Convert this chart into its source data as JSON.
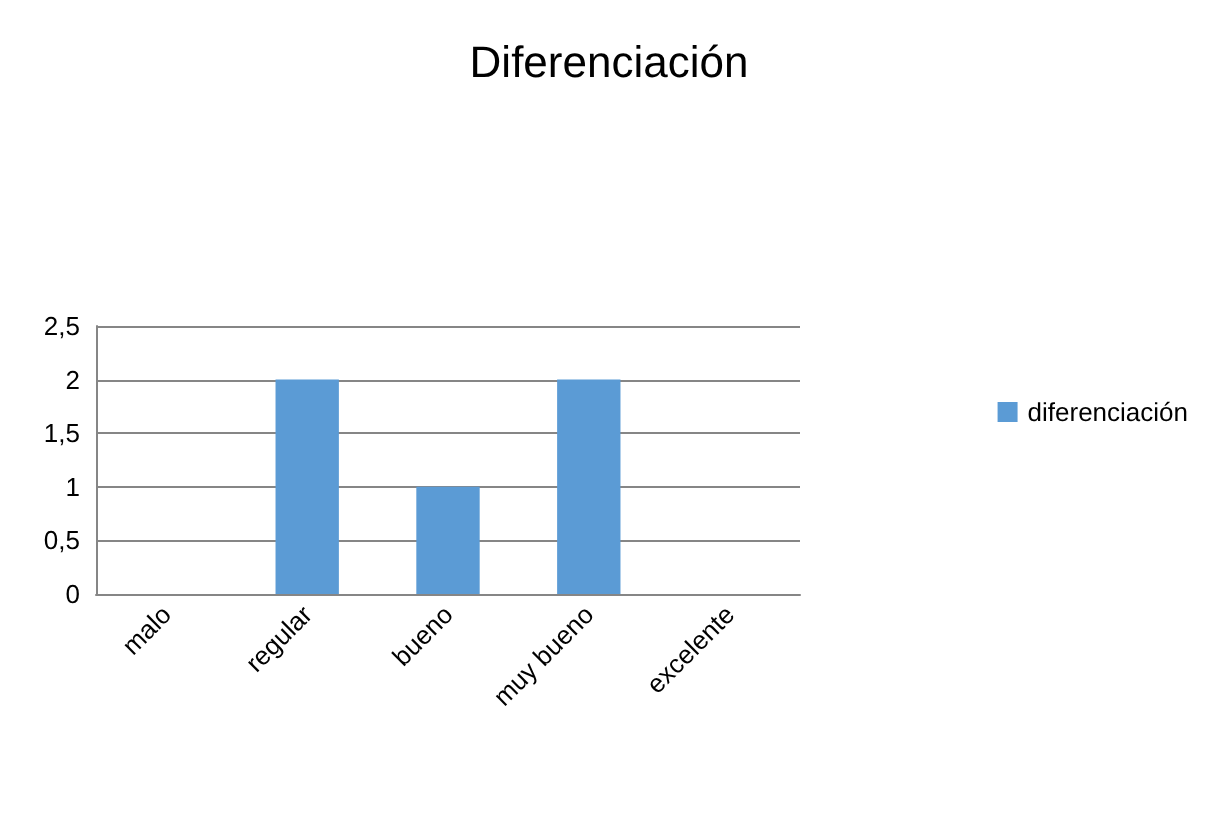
{
  "chart_data": {
    "type": "bar",
    "title": "Diferenciación",
    "categories": [
      "malo",
      "regular",
      "bueno",
      "muy bueno",
      "excelente"
    ],
    "series": [
      {
        "name": "diferenciación",
        "color": "#5b9bd5",
        "values": [
          0,
          2,
          1,
          2,
          0
        ]
      }
    ],
    "ylim": [
      0,
      2.5
    ],
    "yticks": [
      0,
      {
        "value": 0.5,
        "label": "0,5"
      },
      1,
      {
        "value": 1.5,
        "label": "1,5"
      },
      2,
      {
        "value": 2.5,
        "label": "2,5"
      }
    ],
    "grid": "y",
    "legend": "right"
  }
}
